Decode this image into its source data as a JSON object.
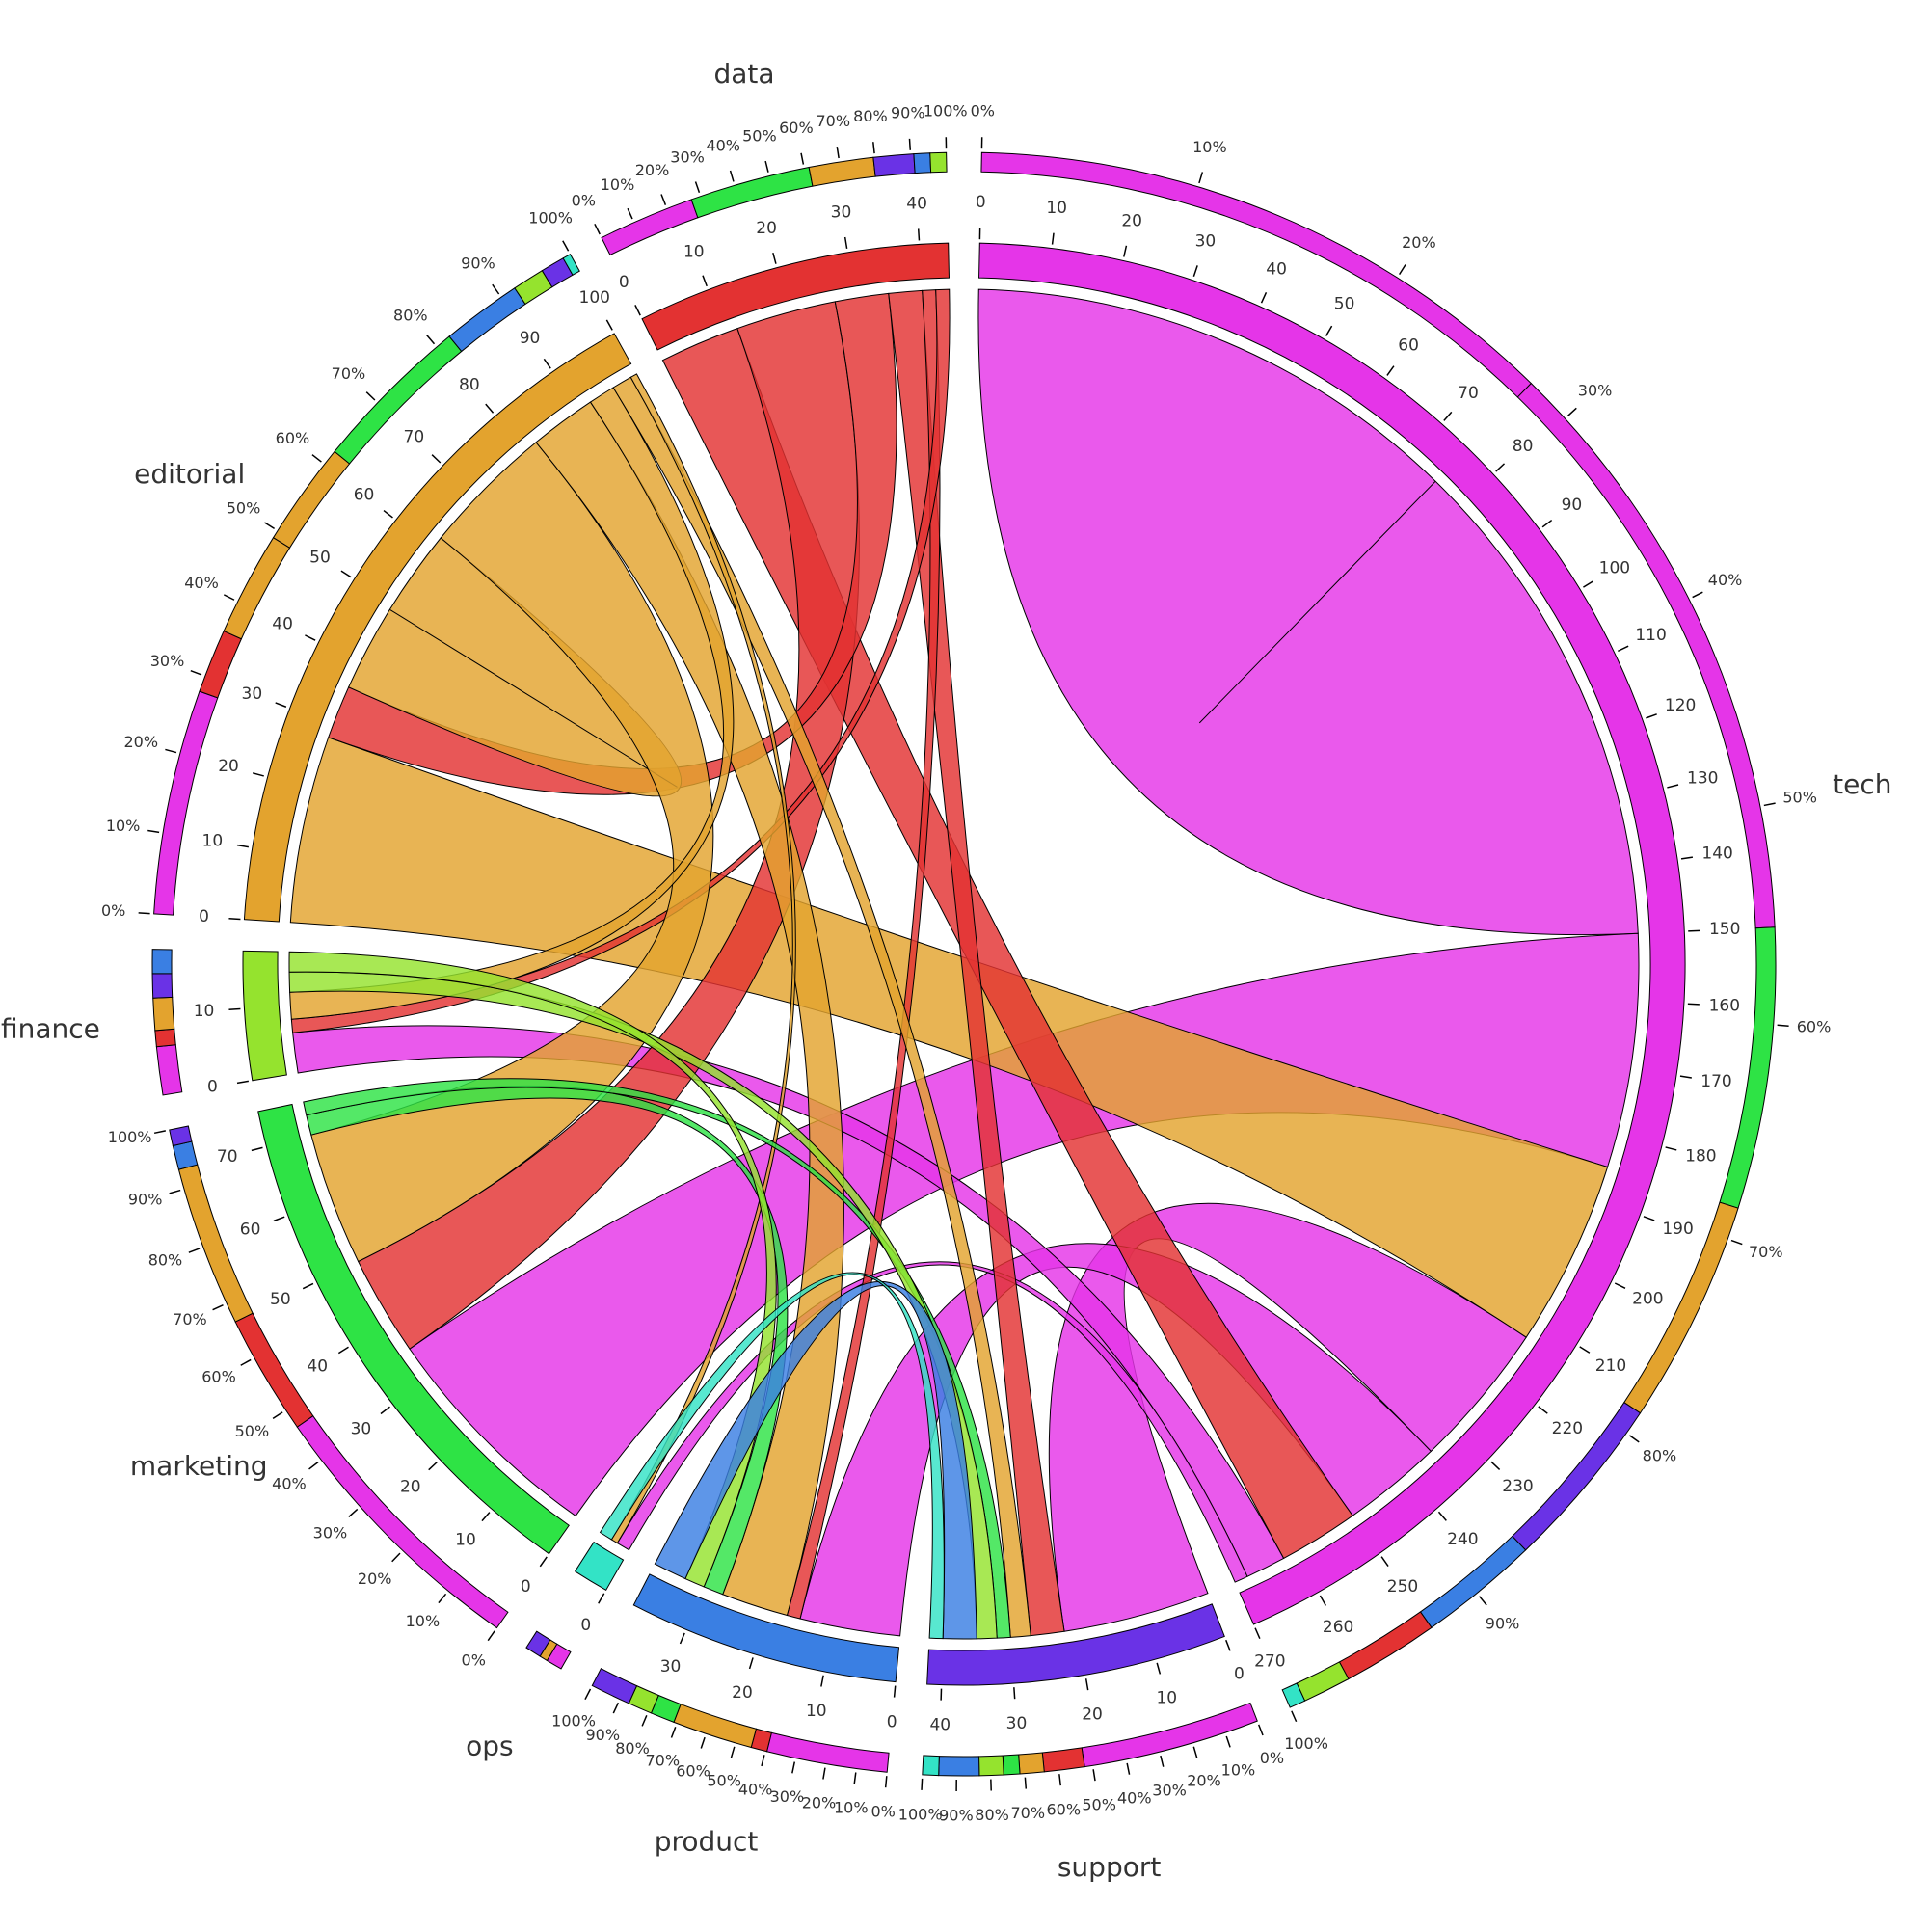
{
  "chart_data": {
    "type": "chord",
    "nodes": [
      {
        "name": "tech",
        "color": "#e535e8",
        "ticks": [
          0,
          10,
          20,
          30,
          40,
          50,
          60,
          70,
          80,
          90,
          100,
          110,
          120,
          130,
          140,
          150,
          160,
          170,
          180,
          190,
          200,
          210,
          220,
          230,
          240,
          250,
          260,
          270
        ]
      },
      {
        "name": "support",
        "color": "#6a32e6",
        "ticks": [
          0,
          10,
          20,
          30,
          40
        ]
      },
      {
        "name": "product",
        "color": "#3a7fe3",
        "ticks": [
          0,
          10,
          20,
          30
        ]
      },
      {
        "name": "ops",
        "color": "#33e3c6",
        "ticks": [
          0
        ]
      },
      {
        "name": "marketing",
        "color": "#2ee345",
        "ticks": [
          0,
          10,
          20,
          30,
          40,
          50,
          60,
          70
        ]
      },
      {
        "name": "finance",
        "color": "#95e32e",
        "ticks": [
          0,
          10
        ]
      },
      {
        "name": "editorial",
        "color": "#e3a32e",
        "ticks": [
          0,
          10,
          20,
          30,
          40,
          50,
          60,
          70,
          80,
          90,
          100
        ]
      },
      {
        "name": "data",
        "color": "#e33232",
        "ticks": [
          0,
          10,
          20,
          30,
          40
        ]
      }
    ],
    "links": [
      {
        "source": "tech",
        "target": "tech",
        "value": 75
      },
      {
        "source": "tech",
        "target": "marketing",
        "value": 35
      },
      {
        "source": "editorial",
        "target": "tech",
        "value": 28
      },
      {
        "source": "tech",
        "target": "support",
        "value": 22
      },
      {
        "source": "tech",
        "target": "product",
        "value": 15
      },
      {
        "source": "data",
        "target": "tech",
        "value": 12
      },
      {
        "source": "tech",
        "target": "finance",
        "value": 6
      },
      {
        "source": "tech",
        "target": "ops",
        "value": 2
      },
      {
        "source": "data",
        "target": "marketing",
        "value": 15
      },
      {
        "source": "data",
        "target": "editorial",
        "value": 8
      },
      {
        "source": "data",
        "target": "support",
        "value": 5
      },
      {
        "source": "data",
        "target": "product",
        "value": 2
      },
      {
        "source": "data",
        "target": "finance",
        "value": 2
      },
      {
        "source": "editorial",
        "target": "editorial",
        "value": 13
      },
      {
        "source": "editorial",
        "target": "marketing",
        "value": 20
      },
      {
        "source": "editorial",
        "target": "product",
        "value": 10
      },
      {
        "source": "editorial",
        "target": "finance",
        "value": 4
      },
      {
        "source": "editorial",
        "target": "support",
        "value": 3
      },
      {
        "source": "editorial",
        "target": "ops",
        "value": 1
      },
      {
        "source": "marketing",
        "target": "product",
        "value": 3
      },
      {
        "source": "marketing",
        "target": "support",
        "value": 2
      },
      {
        "source": "finance",
        "target": "support",
        "value": 3
      },
      {
        "source": "finance",
        "target": "product",
        "value": 3
      },
      {
        "source": "product",
        "target": "support",
        "value": 5
      },
      {
        "source": "ops",
        "target": "support",
        "value": 2
      }
    ],
    "percent_ticks": [
      {
        "value": 0,
        "label": "0%"
      },
      {
        "value": 10,
        "label": "10%"
      },
      {
        "value": 20,
        "label": "20%"
      },
      {
        "value": 30,
        "label": "30%"
      },
      {
        "value": 40,
        "label": "40%"
      },
      {
        "value": 50,
        "label": "50%"
      },
      {
        "value": 60,
        "label": "60%"
      },
      {
        "value": 70,
        "label": "70%"
      },
      {
        "value": 80,
        "label": "80%"
      },
      {
        "value": 90,
        "label": "90%"
      },
      {
        "value": 100,
        "label": "100%"
      }
    ]
  }
}
